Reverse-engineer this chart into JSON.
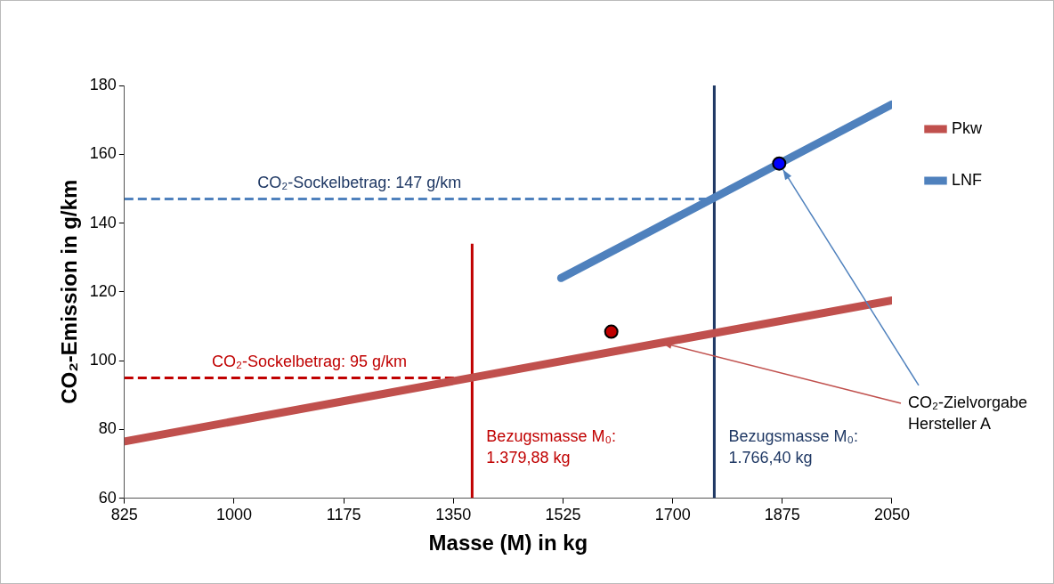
{
  "chart_data": {
    "type": "line",
    "xlabel": "Masse (M) in kg",
    "ylabel": "CO₂-Emission in g/km",
    "xlim": [
      825,
      2050
    ],
    "xticks": [
      825,
      1000,
      1175,
      1350,
      1525,
      1700,
      1875,
      2050
    ],
    "ylim": [
      60,
      180
    ],
    "yticks": [
      60,
      80,
      100,
      120,
      140,
      160,
      180
    ],
    "grid": false,
    "legend": "right",
    "series": [
      {
        "name": "Pkw",
        "color": "#c0504d",
        "x": [
          825,
          2050
        ],
        "values": [
          76.5,
          117.5
        ]
      },
      {
        "name": "LNF",
        "color": "#4f81bd",
        "x": [
          1522,
          2050
        ],
        "values": [
          124,
          174.5
        ]
      },
      {
        "type": "line",
        "color": "#c00000",
        "x": [
          825,
          1375
        ],
        "values": [
          95,
          95
        ],
        "line_style": "dashed"
      },
      {
        "type": "line",
        "color": "#4f81bd",
        "x": [
          825,
          1766.4
        ],
        "values": [
          147,
          147
        ],
        "line_style": "dashed"
      },
      {
        "type": "line",
        "color": "#c00000",
        "x": [
          1379.88,
          1379.88
        ],
        "values": [
          60,
          134
        ]
      },
      {
        "type": "line",
        "color": "#1f3864",
        "x": [
          1766.4,
          1766.4
        ],
        "values": [
          60,
          180
        ]
      },
      {
        "type": "scatter",
        "color": "#c00000",
        "x": [
          1602
        ],
        "values": [
          108.4
        ],
        "marker": "circle"
      },
      {
        "type": "scatter",
        "color": "#0000ff",
        "x": [
          1870
        ],
        "values": [
          157.3
        ],
        "marker": "circle"
      }
    ],
    "annotations": [
      {
        "text": "CO₂-Sockelbetrag: 147 g/km",
        "x": 1200,
        "y": 147
      },
      {
        "text": "CO₂-Sockelbetrag: 95 g/km",
        "x": 1120,
        "y": 95
      },
      {
        "text": "Bezugsmasse M₀:\n1.379,88 kg",
        "x": 1379.88,
        "y": 75
      },
      {
        "text": "Bezugsmasse M₀:\n1.766,40 kg",
        "x": 1766.4,
        "y": 75
      },
      {
        "text": "CO₂-Zielvorgabe\nHersteller A",
        "x": 1870,
        "y": 157.3
      }
    ]
  }
}
